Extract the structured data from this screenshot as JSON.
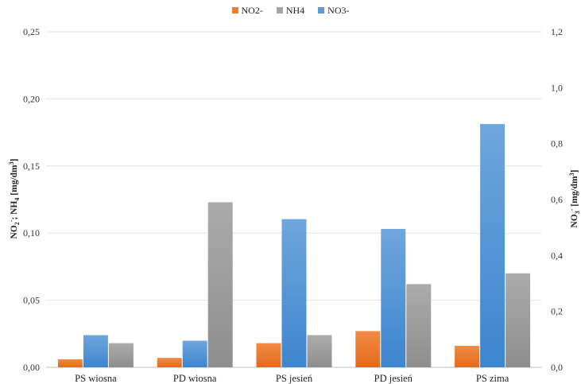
{
  "chart_data": {
    "type": "bar",
    "categories": [
      "PS wiosna",
      "PD wiosna",
      "PS jesień",
      "PD jesień",
      "PS zima"
    ],
    "series": [
      {
        "name": "NO2-",
        "axis": "left",
        "color": "#ed7d31",
        "values": [
          0.006,
          0.007,
          0.018,
          0.027,
          0.016
        ]
      },
      {
        "name": "NH4",
        "axis": "left",
        "color": "#a5a5a5",
        "values": [
          0.018,
          0.123,
          0.024,
          0.062,
          0.07
        ]
      },
      {
        "name": "NO3-",
        "axis": "right",
        "color": "#5b9bd5",
        "values": [
          0.115,
          0.095,
          0.53,
          0.495,
          0.87
        ]
      }
    ],
    "bar_order": [
      "NO2-",
      "NO3-",
      "NH4"
    ],
    "y_left": {
      "lim": [
        0,
        0.25
      ],
      "ticks": [
        "0,00",
        "0,05",
        "0,10",
        "0,15",
        "0,20",
        "0,25"
      ]
    },
    "y_right": {
      "lim": [
        0,
        1.2
      ],
      "ticks": [
        "0,0",
        "0,2",
        "0,4",
        "0,6",
        "0,8",
        "1,0",
        "1,2"
      ]
    },
    "ylabel_left": "NO2-; NH4 [mg/dm3]",
    "ylabel_right": "NO3- [mg/dm3]",
    "legend_position": "top-center",
    "grid": true
  }
}
